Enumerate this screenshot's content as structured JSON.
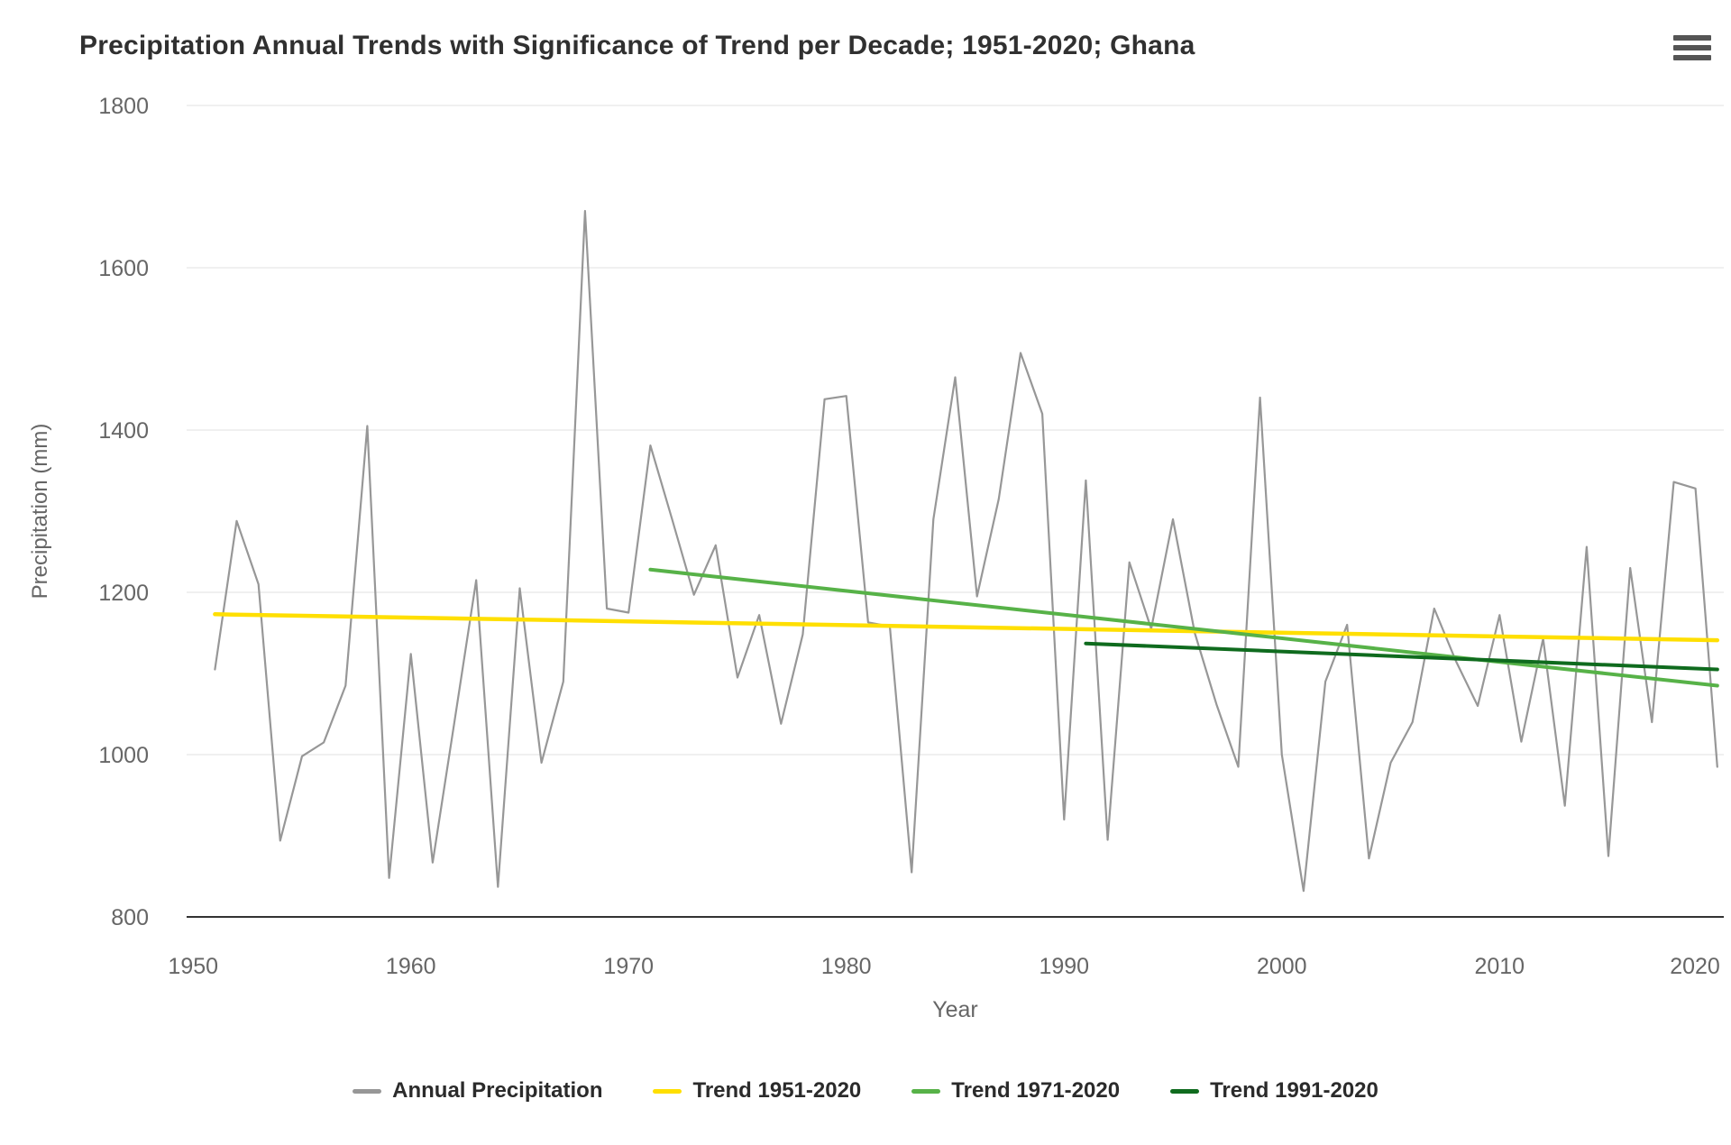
{
  "title": "Precipitation Annual Trends with Significance of Trend per Decade; 1951-2020; Ghana",
  "menu_icon": "hamburger-menu",
  "colors": {
    "annual": "#979797",
    "trend_1951": "#FFDF00",
    "trend_1971": "#57B248",
    "trend_1991": "#0F6B1E",
    "gridline": "#E6E6E6",
    "axis_line": "#333333",
    "tick_text": "#666666",
    "title_text": "#303030"
  },
  "chart_data": {
    "type": "line",
    "title": "Precipitation Annual Trends with Significance of Trend per Decade; 1951-2020; Ghana",
    "xlabel": "Year",
    "ylabel": "Precipitation (mm)",
    "xlim": [
      1949.7,
      2020.3
    ],
    "ylim": [
      800,
      1800
    ],
    "x_ticks": [
      1950,
      1960,
      1970,
      1980,
      1990,
      2000,
      2010,
      2020
    ],
    "y_ticks": [
      800,
      1000,
      1200,
      1400,
      1600,
      1800
    ],
    "grid": true,
    "legend_position": "bottom",
    "series": [
      {
        "name": "Annual Precipitation",
        "color": "#979797",
        "width": 2.2,
        "x": [
          1951,
          1952,
          1953,
          1954,
          1955,
          1956,
          1957,
          1958,
          1959,
          1960,
          1961,
          1962,
          1963,
          1964,
          1965,
          1966,
          1967,
          1968,
          1969,
          1970,
          1971,
          1972,
          1973,
          1974,
          1975,
          1976,
          1977,
          1978,
          1979,
          1980,
          1981,
          1982,
          1983,
          1984,
          1985,
          1986,
          1987,
          1988,
          1989,
          1990,
          1991,
          1992,
          1993,
          1994,
          1995,
          1996,
          1997,
          1998,
          1999,
          2000,
          2001,
          2002,
          2003,
          2004,
          2005,
          2006,
          2007,
          2008,
          2009,
          2010,
          2011,
          2012,
          2013,
          2014,
          2015,
          2016,
          2017,
          2018,
          2019,
          2020
        ],
        "values": [
          1105,
          1288,
          1210,
          894,
          998,
          1015,
          1085,
          1405,
          848,
          1124,
          867,
          1040,
          1215,
          837,
          1205,
          990,
          1090,
          1670,
          1180,
          1175,
          1381,
          1290,
          1197,
          1258,
          1095,
          1172,
          1038,
          1148,
          1438,
          1442,
          1163,
          1158,
          855,
          1290,
          1465,
          1195,
          1315,
          1495,
          1420,
          920,
          1338,
          895,
          1237,
          1155,
          1290,
          1150,
          1062,
          985,
          1440,
          1000,
          832,
          1090,
          1160,
          872,
          990,
          1040,
          1180,
          1115,
          1060,
          1172,
          1016,
          1143,
          937,
          1256,
          875,
          1230,
          1040,
          1336,
          1328,
          985
        ]
      },
      {
        "name": "Trend 1951-2020",
        "color": "#FFDF00",
        "width": 4.5,
        "x": [
          1951,
          2020
        ],
        "values": [
          1173,
          1141
        ]
      },
      {
        "name": "Trend 1971-2020",
        "color": "#57B248",
        "width": 4,
        "x": [
          1971,
          2020
        ],
        "values": [
          1228,
          1085
        ]
      },
      {
        "name": "Trend 1991-2020",
        "color": "#0F6B1E",
        "width": 4,
        "x": [
          1991,
          2020
        ],
        "values": [
          1137,
          1105
        ]
      }
    ]
  }
}
